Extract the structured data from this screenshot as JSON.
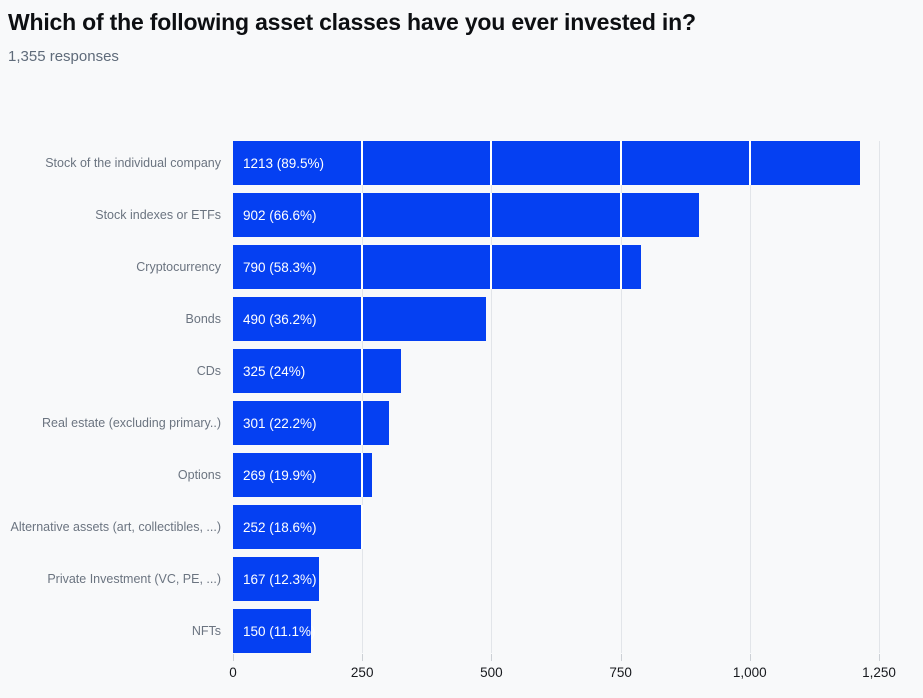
{
  "header": {
    "title": "Which of the following asset classes have you ever invested in?",
    "subtitle": "1,355 responses"
  },
  "colors": {
    "background": "#f8f9fa",
    "bar": "#0540f2",
    "bar_value_text": "#ffffff",
    "gridline": "#e2e5e9",
    "gridline_on_bar": "#ffffff",
    "category_label": "#6b7480",
    "axis_tick": "#ccd0d5",
    "axis_text": "#17191d",
    "title_text": "#0d0f12",
    "subtitle_text": "#5f6b7a"
  },
  "chart_data": {
    "type": "bar",
    "orientation": "horizontal",
    "title": "Which of the following asset classes have you ever invested in?",
    "subtitle": "1,355 responses",
    "categories": [
      "Stock of the individual company",
      "Stock indexes or ETFs",
      "Cryptocurrency",
      "Bonds",
      "CDs",
      "Real estate (excluding primary..)",
      "Options",
      "Alternative assets (art, collectibles, ...)",
      "Private Investment (VC, PE, ...)",
      "NFTs"
    ],
    "values": [
      1213,
      902,
      790,
      490,
      325,
      301,
      269,
      252,
      167,
      150
    ],
    "percentages": [
      89.5,
      66.6,
      58.3,
      36.2,
      24,
      22.2,
      19.9,
      18.6,
      12.3,
      11.1
    ],
    "value_labels": [
      "1213 (89.5%)",
      "902 (66.6%)",
      "790 (58.3%)",
      "490 (36.2%)",
      "325 (24%)",
      "301 (22.2%)",
      "269 (19.9%)",
      "252 (18.6%)",
      "167 (12.3%)",
      "150 (11.1%)"
    ],
    "xlabel": "",
    "ylabel": "",
    "xlim": [
      0,
      1250
    ],
    "x_ticks": [
      0,
      250,
      500,
      750,
      1000,
      1250
    ],
    "x_tick_labels": [
      "0",
      "250",
      "500",
      "750",
      "1,000",
      "1,250"
    ],
    "grid": "vertical",
    "legend": "none"
  }
}
